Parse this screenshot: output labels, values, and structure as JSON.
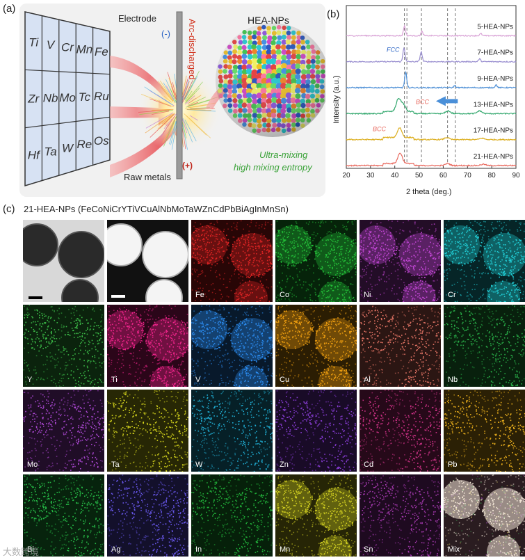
{
  "panel_labels": {
    "a": "(a)",
    "b": "(b)",
    "c": "(c)"
  },
  "panel_a": {
    "electrode_label": "Electrode",
    "minus_sign": "(-)",
    "plus_sign": "(+)",
    "arc_label": "Arc-discharged",
    "raw_metals_label": "Raw metals",
    "hea_label": "HEA-NPs",
    "caption_line1": "Ultra-mixing",
    "caption_line2": "high mixing entropy",
    "grid_rows": [
      [
        "Ti",
        "V",
        "Cr",
        "Mn",
        "Fe"
      ],
      [
        "Zr",
        "Nb",
        "Mo",
        "Tc",
        "Ru"
      ],
      [
        "Hf",
        "Ta",
        "W",
        "Re",
        "Os"
      ]
    ],
    "colors": {
      "arc_text": "#d2341f",
      "caption": "#3aa238",
      "minus": "#2a64c5",
      "plus": "#c0271c",
      "grid_bg": "#d7e2f3"
    }
  },
  "chart_data": {
    "type": "line",
    "title": "",
    "xlabel": "2 theta (deg.)",
    "ylabel": "Intensity (a.u.)",
    "xlim": [
      20,
      90
    ],
    "xticks": [
      20,
      30,
      40,
      50,
      60,
      70,
      80,
      90
    ],
    "series": [
      {
        "name": "5-HEA-NPs",
        "color": "#d9a3d6",
        "peaks": [
          [
            44.0,
            14
          ],
          [
            51.2,
            6
          ],
          [
            75.5,
            3
          ]
        ]
      },
      {
        "name": "7-HEA-NPs",
        "color": "#9a8fd0",
        "peaks": [
          [
            43.8,
            20
          ],
          [
            50.9,
            14
          ],
          [
            75.0,
            4
          ]
        ]
      },
      {
        "name": "9-HEA-NPs",
        "color": "#4d8fd6",
        "peaks": [
          [
            44.5,
            22
          ],
          [
            64.8,
            3
          ],
          [
            81.8,
            4
          ]
        ]
      },
      {
        "name": "13-HEA-NPs",
        "color": "#2fa66b",
        "peaks": [
          [
            41.5,
            18
          ],
          [
            43.5,
            10
          ],
          [
            62.0,
            4
          ],
          [
            75.0,
            4
          ]
        ]
      },
      {
        "name": "17-HEA-NPs",
        "color": "#dcae1e",
        "peaks": [
          [
            42.0,
            14
          ],
          [
            61.5,
            3
          ],
          [
            76.0,
            2
          ]
        ]
      },
      {
        "name": "21-HEA-NPs",
        "color": "#e8685d",
        "peaks": [
          [
            42.2,
            15
          ],
          [
            61.8,
            3
          ],
          [
            76.5,
            2
          ]
        ]
      }
    ],
    "annotations": [
      {
        "text": "FCC",
        "color": "#2a64c5"
      },
      {
        "text": "BCC",
        "color": "#e8685d"
      },
      {
        "text": "BCC",
        "color": "#e8685d"
      }
    ],
    "reference_lines_x": [
      44.0,
      45.0,
      51.0,
      61.8,
      65.0
    ],
    "arrow_color": "#4a8fd8"
  },
  "panel_c": {
    "title": "21-HEA-NPs (FeCoNiCrYTiVCuAlNbMoTaWZnCdPbBiAgInMnSn)",
    "tiles": [
      {
        "label": "",
        "kind": "tem"
      },
      {
        "label": "",
        "kind": "haadf"
      },
      {
        "label": "Fe",
        "kind": "map",
        "color": "#e02424"
      },
      {
        "label": "Co",
        "kind": "map",
        "color": "#24c23a"
      },
      {
        "label": "Ni",
        "kind": "map",
        "color": "#c447d6"
      },
      {
        "label": "Cr",
        "kind": "map",
        "color": "#22d0d8"
      },
      {
        "label": "Y",
        "kind": "map",
        "color": "#3ec04a",
        "faint": true
      },
      {
        "label": "Ti",
        "kind": "map",
        "color": "#f0248c"
      },
      {
        "label": "V",
        "kind": "map",
        "color": "#2c8cf0"
      },
      {
        "label": "Cu",
        "kind": "map",
        "color": "#f0a010"
      },
      {
        "label": "Al",
        "kind": "map",
        "color": "#f07a6a",
        "faint": true
      },
      {
        "label": "Nb",
        "kind": "map",
        "color": "#2ab24a",
        "faint": true
      },
      {
        "label": "Mo",
        "kind": "map",
        "color": "#b04ad8",
        "faint": true
      },
      {
        "label": "Ta",
        "kind": "map",
        "color": "#d8d81e",
        "faint": true
      },
      {
        "label": "W",
        "kind": "map",
        "color": "#22b2d8",
        "faint": true
      },
      {
        "label": "Zn",
        "kind": "map",
        "color": "#8a3ed8",
        "faint": true
      },
      {
        "label": "Cd",
        "kind": "map",
        "color": "#d2348a",
        "faint": true
      },
      {
        "label": "Pb",
        "kind": "map",
        "color": "#f0b41e",
        "faint": true
      },
      {
        "label": "Bi",
        "kind": "map",
        "color": "#28c24a",
        "faint": true
      },
      {
        "label": "Ag",
        "kind": "map",
        "color": "#6a5af0",
        "faint": true
      },
      {
        "label": "In",
        "kind": "map",
        "color": "#22b23a",
        "faint": true
      },
      {
        "label": "Mn",
        "kind": "map",
        "color": "#d2d022"
      },
      {
        "label": "Sn",
        "kind": "map",
        "color": "#a83ab2",
        "faint": true
      },
      {
        "label": "Mix",
        "kind": "mix",
        "color": "#f4e8d8"
      }
    ]
  },
  "watermark": "大数跨境"
}
